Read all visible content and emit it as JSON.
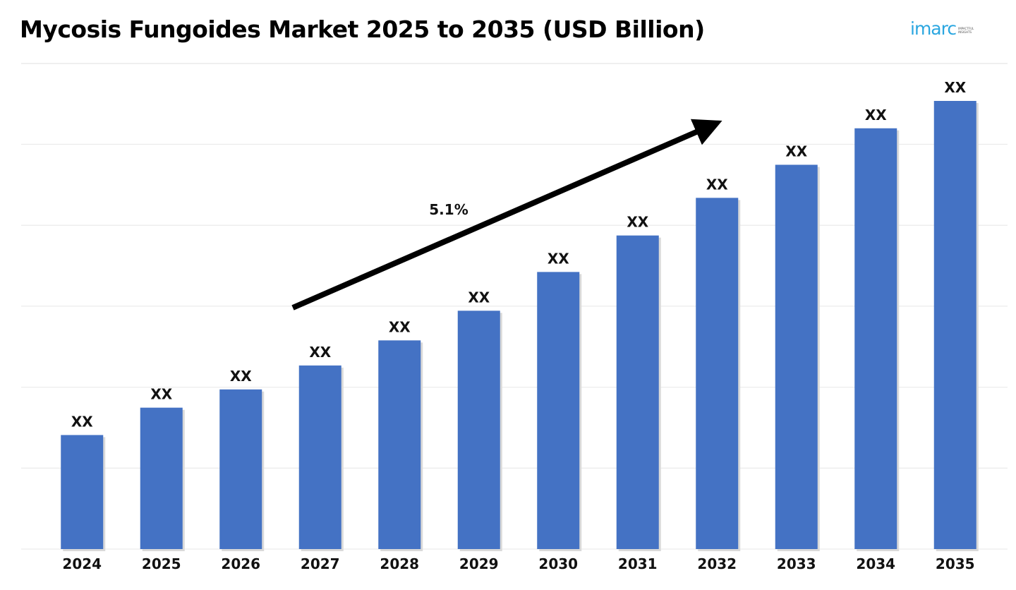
{
  "chart_data": {
    "type": "bar",
    "title": "Mycosis Fungoides Market 2025 to 2035 (USD Billion)",
    "categories": [
      "2024",
      "2025",
      "2026",
      "2027",
      "2028",
      "2029",
      "2030",
      "2031",
      "2032",
      "2033",
      "2034",
      "2035"
    ],
    "values": [
      1.0,
      1.24,
      1.4,
      1.61,
      1.83,
      2.09,
      2.43,
      2.75,
      3.08,
      3.37,
      3.69,
      3.93
    ],
    "value_labels": [
      "XX",
      "XX",
      "XX",
      "XX",
      "XX",
      "XX",
      "XX",
      "XX",
      "XX",
      "XX",
      "XX",
      "XX"
    ],
    "value_note": "values are relative estimates read from bar heights; the chart prints no y-axis and labels every bar XX",
    "annotation": "5.1%",
    "xlabel": "",
    "ylabel": "",
    "ylim": [
      0,
      4.0
    ],
    "grid": true,
    "legend": "none",
    "colors": {
      "bar": "#4472c4",
      "arrow": "#000000",
      "grid": "#ececec"
    }
  },
  "brand": {
    "logo_text": "imarc",
    "logo_tagline": "IMPACTFUL INSIGHTS"
  }
}
